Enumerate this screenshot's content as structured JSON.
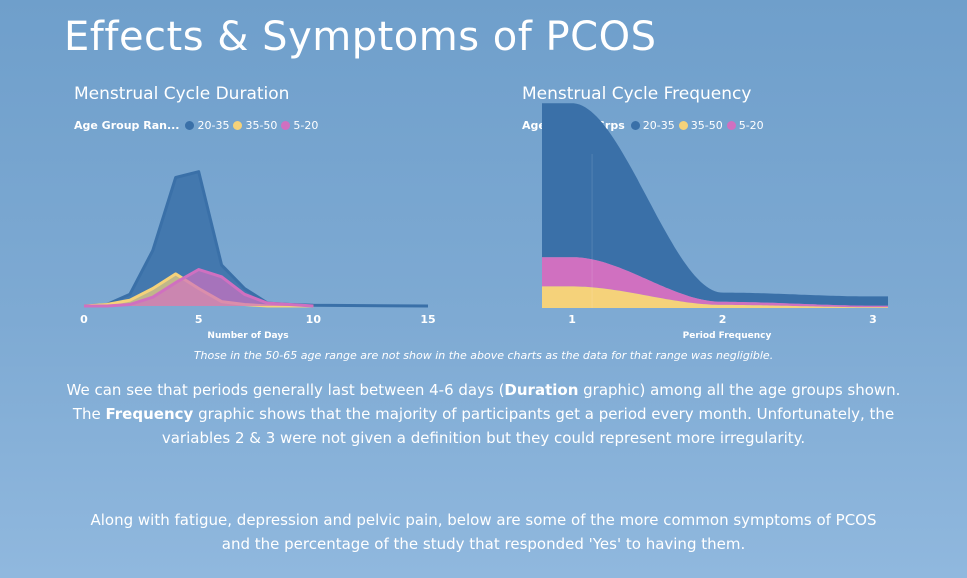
{
  "page": {
    "title": "Effects & Symptoms of PCOS",
    "footnote": "Those in the 50-65 age range are not show in the above charts as the data for that range was negligible.",
    "paragraph1": {
      "line1_a": "We can see that periods generally last between 4-6 days (",
      "line1_bold": "Duration",
      "line1_b": " graphic) among all the age groups shown.",
      "line2_a": "The ",
      "line2_bold": "Frequency",
      "line2_b": " graphic shows that the majority of participants get a period every month.  Unfortunately, the",
      "line3": "variables 2 & 3 were not given a definition but they could represent more irregularity."
    },
    "paragraph2": {
      "line1": "Along with fatigue, depression and pelvic pain, below are some of the more common symptoms of PCOS",
      "line2": "and the percentage of the study that responded 'Yes' to having them."
    },
    "colors": {
      "series_20_35": "#3a70a8",
      "series_35_50": "#f5d27a",
      "series_5_20": "#d070c0"
    }
  },
  "chart_data": [
    {
      "type": "area",
      "title": "Menstrual Cycle Duration",
      "legend_title": "Age Group Ran...",
      "xlabel": "Number of Days",
      "ylabel": "",
      "xlim": [
        0,
        15
      ],
      "ylim": [
        0,
        100
      ],
      "xticks": [
        0,
        5,
        10,
        15
      ],
      "grid": false,
      "legend_position": "top-left",
      "series": [
        {
          "name": "20-35",
          "color": "#3a70a8",
          "points": [
            [
              0,
              0
            ],
            [
              1,
              1
            ],
            [
              2,
              8
            ],
            [
              3,
              38
            ],
            [
              4,
              88
            ],
            [
              5,
              92
            ],
            [
              6,
              28
            ],
            [
              7,
              12
            ],
            [
              8,
              2
            ],
            [
              9,
              1
            ],
            [
              10,
              0.5
            ],
            [
              15,
              0
            ]
          ]
        },
        {
          "name": "35-50",
          "color": "#f5d27a",
          "points": [
            [
              0,
              0
            ],
            [
              1,
              1
            ],
            [
              2,
              4
            ],
            [
              3,
              12
            ],
            [
              4,
              22
            ],
            [
              5,
              12
            ],
            [
              6,
              3
            ],
            [
              7,
              1
            ],
            [
              8,
              0
            ],
            [
              10,
              0
            ]
          ]
        },
        {
          "name": "5-20",
          "color": "#d070c0",
          "points": [
            [
              0,
              0
            ],
            [
              1,
              0
            ],
            [
              2,
              1
            ],
            [
              3,
              6
            ],
            [
              4,
              16
            ],
            [
              5,
              25
            ],
            [
              6,
              20
            ],
            [
              7,
              8
            ],
            [
              8,
              2
            ],
            [
              10,
              0
            ]
          ]
        }
      ]
    },
    {
      "type": "area",
      "title": "Menstrual Cycle Frequency",
      "legend_title": "Age_Range_Grps",
      "xlabel": "Period Frequency",
      "ylabel": "",
      "xlim": [
        0.8,
        3.1
      ],
      "ylim": [
        0,
        100
      ],
      "xticks": [
        1,
        2,
        3
      ],
      "stacked": true,
      "grid": false,
      "legend_position": "top-left",
      "categories": [
        1,
        2,
        3
      ],
      "series": [
        {
          "name": "35-50",
          "color": "#f5d27a",
          "values": [
            14,
            2,
            0.5
          ]
        },
        {
          "name": "5-20",
          "color": "#d070c0",
          "values": [
            19,
            2,
            1
          ]
        },
        {
          "name": "20-35",
          "color": "#3a70a8",
          "values": [
            100,
            6,
            6
          ]
        }
      ]
    }
  ]
}
